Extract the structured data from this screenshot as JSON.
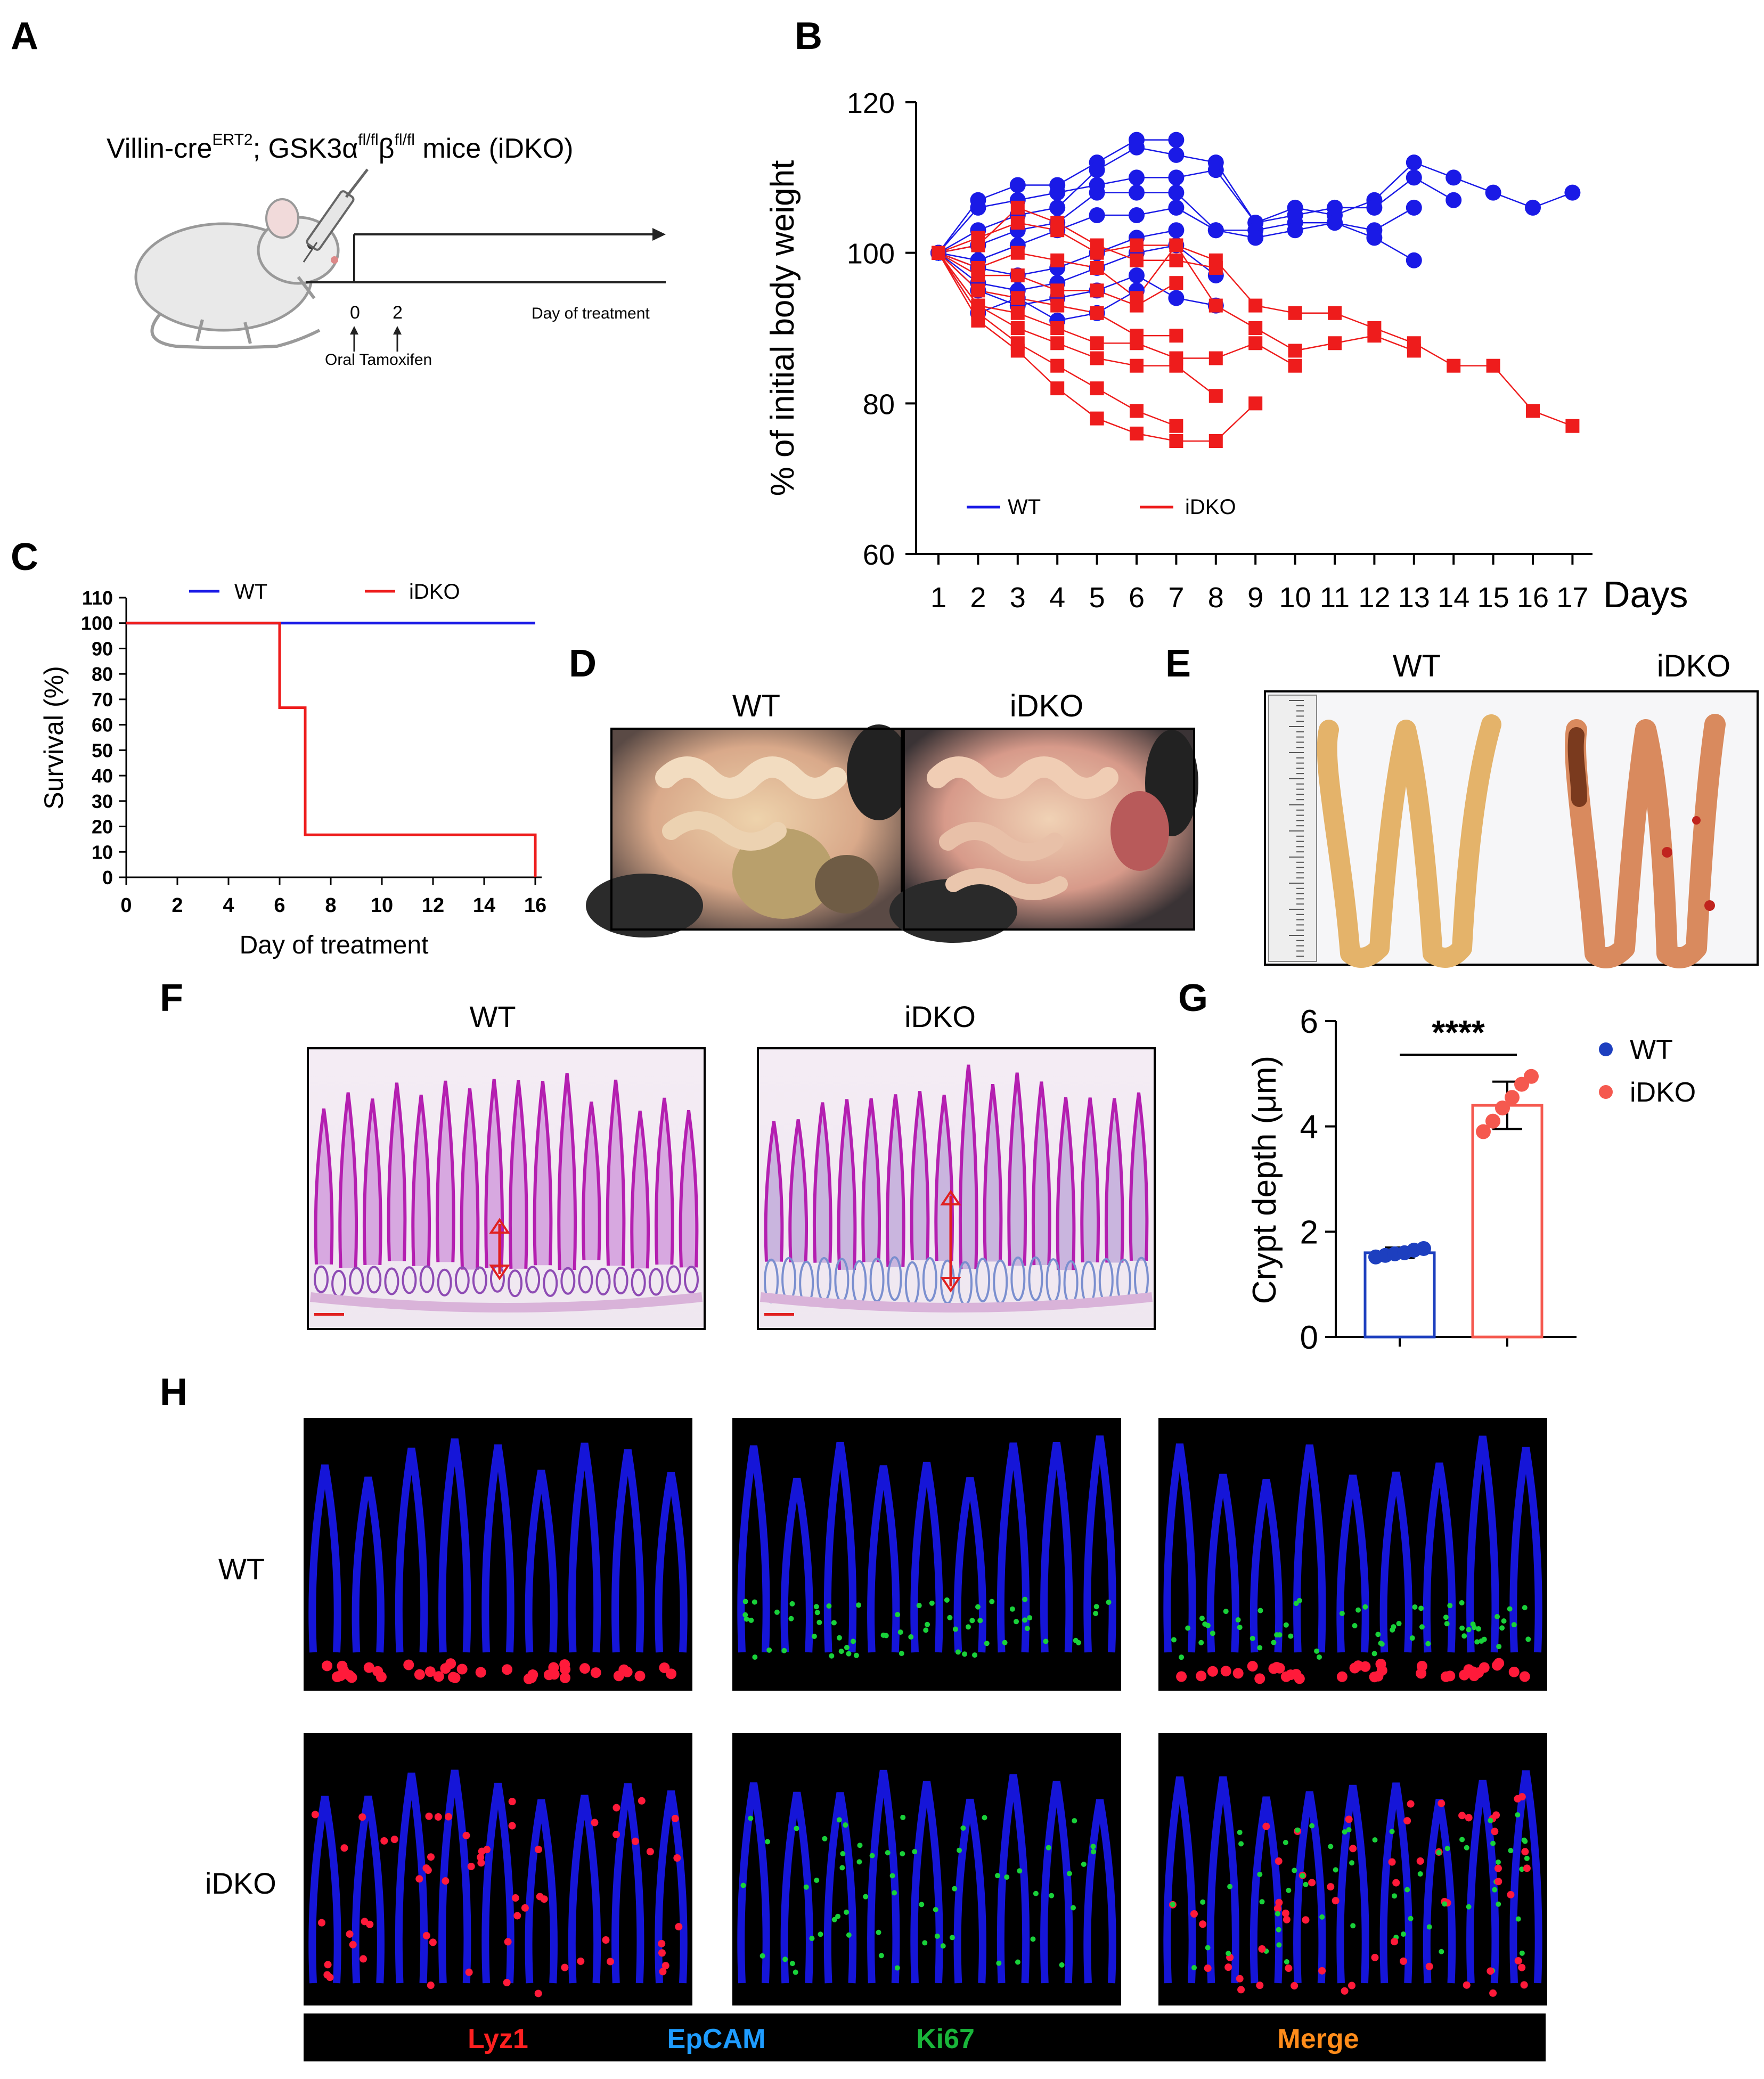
{
  "panels": {
    "a": "A",
    "b": "B",
    "c": "C",
    "d": "D",
    "e": "E",
    "f": "F",
    "g": "G",
    "h": "H"
  },
  "colors": {
    "wt": "#1a1ae6",
    "idko": "#ee1c1c",
    "wt_dot": "#1d3fbf",
    "idko_dot": "#f5594f",
    "lyz1": "#ff2020",
    "epcam": "#1e9cff",
    "ki67": "#19b53a",
    "merge": "#ff8c1a"
  },
  "panel_a": {
    "mouse_label": "Villin-cre",
    "sup1": "ERT2",
    "mid": "; GSK3α",
    "sup2": "fl/fl",
    "beta": "β",
    "sup3": "fl/fl",
    "tail": " mice (iDKO)",
    "tick0": "0",
    "tick2": "2",
    "axis_label": "Day of treatment",
    "drug_label": "Oral Tamoxifen",
    "icons": [
      "mouse-icon",
      "syringe-icon"
    ]
  },
  "chart_data": [
    {
      "id": "B",
      "type": "line",
      "ylabel": "% of initial body weight",
      "xlabel": "Days",
      "ylim": [
        60,
        120
      ],
      "yticks": [
        60,
        80,
        100,
        120
      ],
      "categories": [
        "1",
        "2",
        "3",
        "4",
        "5",
        "6",
        "7",
        "8",
        "9",
        "10",
        "11",
        "12",
        "13",
        "14",
        "15",
        "16",
        "17"
      ],
      "legend": [
        "WT",
        "iDKO"
      ],
      "legend_position": "bottom",
      "series": [
        {
          "group": "WT",
          "x": [
            1,
            2,
            3,
            4,
            5,
            6,
            7,
            8,
            9,
            10,
            11,
            12,
            13,
            14,
            15,
            16,
            17
          ],
          "y": [
            100,
            106,
            107,
            108,
            109,
            110,
            110,
            111,
            104,
            106,
            105,
            107,
            112,
            110,
            108,
            106,
            108
          ]
        },
        {
          "group": "WT",
          "x": [
            1,
            2,
            3,
            4,
            5,
            6,
            7
          ],
          "y": [
            100,
            107,
            109,
            109,
            112,
            115,
            115
          ]
        },
        {
          "group": "WT",
          "x": [
            1,
            2,
            3,
            4,
            5,
            6,
            7,
            8,
            9,
            10,
            11,
            12,
            13,
            14
          ],
          "y": [
            100,
            103,
            105,
            106,
            111,
            114,
            113,
            112,
            104,
            105,
            106,
            106,
            110,
            107
          ]
        },
        {
          "group": "WT",
          "x": [
            1,
            2,
            3,
            4,
            5,
            6,
            7,
            8,
            9,
            10,
            11,
            12,
            13
          ],
          "y": [
            100,
            101,
            103,
            104,
            108,
            108,
            108,
            103,
            103,
            104,
            104,
            103,
            106
          ]
        },
        {
          "group": "WT",
          "x": [
            1,
            2,
            3,
            4,
            5,
            6,
            7,
            8,
            9,
            10,
            11,
            12,
            13
          ],
          "y": [
            100,
            99,
            101,
            103,
            105,
            105,
            106,
            103,
            102,
            103,
            104,
            102,
            99
          ]
        },
        {
          "group": "WT",
          "x": [
            1,
            2,
            3,
            4,
            5,
            6,
            7
          ],
          "y": [
            100,
            98,
            97,
            98,
            100,
            102,
            103
          ]
        },
        {
          "group": "WT",
          "x": [
            1,
            2,
            3,
            4,
            5,
            6,
            7,
            8
          ],
          "y": [
            100,
            96,
            95,
            96,
            98,
            100,
            101,
            97
          ]
        },
        {
          "group": "WT",
          "x": [
            1,
            2,
            3,
            4,
            5,
            6,
            7,
            8
          ],
          "y": [
            100,
            95,
            93,
            94,
            95,
            97,
            94,
            93
          ]
        },
        {
          "group": "WT",
          "x": [
            1,
            2,
            3,
            4,
            5,
            6
          ],
          "y": [
            100,
            92,
            94,
            91,
            92,
            95
          ]
        },
        {
          "group": "iDKO",
          "x": [
            1,
            2,
            3,
            4,
            5,
            6,
            7,
            8
          ],
          "y": [
            100,
            101,
            106,
            104,
            101,
            99,
            99,
            98
          ]
        },
        {
          "group": "iDKO",
          "x": [
            1,
            2,
            3,
            4,
            5,
            6,
            7,
            8,
            9,
            10,
            11,
            12,
            13,
            14,
            15,
            16,
            17
          ],
          "y": [
            100,
            102,
            104,
            103,
            100,
            101,
            101,
            99,
            93,
            92,
            92,
            90,
            88,
            85,
            85,
            79,
            77
          ]
        },
        {
          "group": "iDKO",
          "x": [
            1,
            2,
            3,
            4,
            5,
            6,
            7,
            8,
            9,
            10,
            11,
            12,
            13
          ],
          "y": [
            100,
            98,
            100,
            99,
            98,
            94,
            101,
            93,
            90,
            87,
            88,
            89,
            87
          ]
        },
        {
          "group": "iDKO",
          "x": [
            1,
            2,
            3,
            4,
            5,
            6,
            7
          ],
          "y": [
            100,
            97,
            97,
            95,
            95,
            93,
            96
          ]
        },
        {
          "group": "iDKO",
          "x": [
            1,
            2,
            3,
            4,
            5,
            6,
            7
          ],
          "y": [
            100,
            95,
            94,
            93,
            92,
            89,
            89
          ]
        },
        {
          "group": "iDKO",
          "x": [
            1,
            2,
            3,
            4,
            5,
            6,
            7,
            8,
            9,
            10
          ],
          "y": [
            100,
            93,
            92,
            90,
            88,
            88,
            86,
            86,
            88,
            85
          ]
        },
        {
          "group": "iDKO",
          "x": [
            1,
            2,
            3,
            4,
            5,
            6,
            7,
            8
          ],
          "y": [
            100,
            93,
            90,
            88,
            86,
            85,
            85,
            81
          ]
        },
        {
          "group": "iDKO",
          "x": [
            1,
            2,
            3,
            4,
            5,
            6,
            7
          ],
          "y": [
            100,
            92,
            88,
            85,
            82,
            79,
            77
          ]
        },
        {
          "group": "iDKO",
          "x": [
            1,
            2,
            3,
            4,
            5,
            6,
            7,
            8,
            9
          ],
          "y": [
            100,
            91,
            87,
            82,
            78,
            76,
            75,
            75,
            80
          ]
        }
      ]
    },
    {
      "id": "C",
      "type": "line",
      "ylabel": "Survival (%)",
      "xlabel": "Day of treatment",
      "ylim": [
        0,
        110
      ],
      "yticks": [
        0,
        10,
        20,
        30,
        40,
        50,
        60,
        70,
        80,
        90,
        100,
        110
      ],
      "xlim": [
        0,
        16
      ],
      "xticks": [
        0,
        2,
        4,
        6,
        8,
        10,
        12,
        14,
        16
      ],
      "legend": [
        "WT",
        "iDKO"
      ],
      "legend_position": "top",
      "series": [
        {
          "name": "WT",
          "x": [
            0,
            16
          ],
          "y": [
            100,
            100
          ]
        },
        {
          "name": "iDKO",
          "x": [
            0,
            6,
            6,
            7,
            7,
            16,
            16
          ],
          "y": [
            100,
            100,
            66.7,
            66.7,
            16.7,
            16.7,
            0
          ]
        }
      ]
    },
    {
      "id": "G",
      "type": "bar",
      "ylabel": "Crypt depth (μm)",
      "ylim": [
        0,
        6
      ],
      "yticks": [
        0,
        2,
        4,
        6
      ],
      "categories": [
        "WT",
        "iDKO"
      ],
      "values": [
        1.6,
        4.4
      ],
      "error": [
        0.1,
        0.45
      ],
      "points": [
        [
          1.52,
          1.55,
          1.58,
          1.6,
          1.65,
          1.68
        ],
        [
          3.9,
          4.1,
          4.35,
          4.55,
          4.8,
          4.95
        ]
      ],
      "significance": "****",
      "legend": [
        "WT",
        "iDKO"
      ],
      "legend_position": "right"
    }
  ],
  "panel_d": {
    "wt": "WT",
    "idko": "iDKO"
  },
  "panel_e": {
    "wt": "WT",
    "idko": "iDKO"
  },
  "panel_f": {
    "wt": "WT",
    "idko": "iDKO"
  },
  "panel_h": {
    "row_wt": "WT",
    "row_idko": "iDKO",
    "lyz1": "Lyz1",
    "epcam": "EpCAM",
    "ki67": "Ki67",
    "merge": "Merge"
  }
}
